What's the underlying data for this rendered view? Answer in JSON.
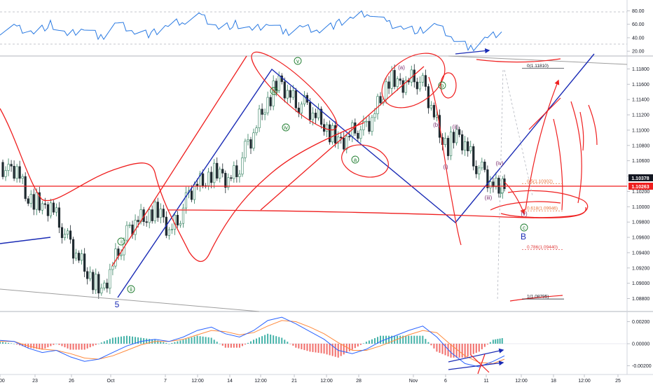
{
  "chart_data": [
    {
      "type": "line",
      "name": "rsi",
      "y_ticks": [
        "80.00",
        "60.00",
        "40.00",
        "20.00"
      ],
      "y_tick_values": [
        80,
        60,
        40,
        20
      ],
      "ylim": [
        17,
        92
      ],
      "x": [
        0,
        4,
        8,
        12,
        16,
        20,
        24,
        28,
        32,
        36,
        40,
        44,
        48,
        52,
        56,
        60,
        64,
        68,
        72,
        76,
        80,
        84,
        88,
        92,
        96,
        100,
        104,
        108,
        112,
        116,
        120
      ],
      "values": [
        50,
        55,
        48,
        60,
        42,
        55,
        40,
        62,
        50,
        45,
        58,
        66,
        72,
        55,
        60,
        50,
        62,
        48,
        56,
        52,
        60,
        70,
        78,
        62,
        55,
        50,
        58,
        38,
        24,
        40,
        52
      ]
    },
    {
      "type": "candlestick",
      "name": "price",
      "y_ticks": [
        "1.11800",
        "1.11600",
        "1.11400",
        "1.11200",
        "1.11000",
        "1.10800",
        "1.10600",
        "1.10400",
        "1.10200",
        "1.10000",
        "1.09800",
        "1.09600",
        "1.09400",
        "1.09200",
        "1.09000",
        "1.08800"
      ],
      "y_tick_values": [
        1.118,
        1.116,
        1.114,
        1.112,
        1.11,
        1.108,
        1.106,
        1.104,
        1.102,
        1.1,
        1.098,
        1.096,
        1.094,
        1.092,
        1.09,
        1.088
      ],
      "ylim": [
        1.0865,
        1.1195
      ],
      "current_price_labels": [
        {
          "text": "1.10378",
          "value": 1.10378,
          "color": "#131722"
        },
        {
          "text": "1.10263",
          "value": 1.10263,
          "color": "#ef1f1f"
        }
      ],
      "fib_levels": [
        {
          "text": "0(1.11810)",
          "value": 1.1181,
          "color": "#131722"
        },
        {
          "text": "0.5(1.10302)",
          "value": 1.10302,
          "color": "#e8733a"
        },
        {
          "text": "0.618(1.09946)",
          "value": 1.09946,
          "color": "#e8733a"
        },
        {
          "text": "0.786(1.09440)",
          "value": 1.0944,
          "color": "#e03a3a"
        },
        {
          "text": "1(1.08795)",
          "value": 1.08795,
          "color": "#131722"
        }
      ],
      "wave_labels_green": [
        "v",
        "iii",
        "iv",
        "i",
        "ii",
        "a",
        "b",
        "c"
      ],
      "wave_labels_purple": [
        "(a)",
        "(b)",
        "(i)",
        "(ii)",
        "(iii)",
        "(iv)",
        "(v)"
      ],
      "wave_labels_blue": [
        "5",
        "B"
      ],
      "close_path": [
        [
          0,
          1.1058
        ],
        [
          6,
          1.1042
        ],
        [
          12,
          1.1048
        ],
        [
          18,
          1.1015
        ],
        [
          24,
          1.101
        ],
        [
          30,
          1.0995
        ],
        [
          36,
          1.1005
        ],
        [
          42,
          1.0982
        ],
        [
          48,
          1.0955
        ],
        [
          54,
          1.0935
        ],
        [
          60,
          1.092
        ],
        [
          66,
          1.0905
        ],
        [
          72,
          1.0885
        ],
        [
          78,
          1.0918
        ],
        [
          84,
          1.0945
        ],
        [
          90,
          1.0962
        ],
        [
          96,
          1.0978
        ],
        [
          102,
          1.0985
        ],
        [
          108,
          1.0995
        ],
        [
          114,
          1.0988
        ],
        [
          120,
          1.097
        ],
        [
          126,
          1.0985
        ],
        [
          132,
          1.1005
        ],
        [
          138,
          1.1025
        ],
        [
          144,
          1.1032
        ],
        [
          150,
          1.1045
        ],
        [
          156,
          1.104
        ],
        [
          162,
          1.1038
        ],
        [
          168,
          1.1048
        ],
        [
          174,
          1.1072
        ],
        [
          180,
          1.1092
        ],
        [
          186,
          1.1125
        ],
        [
          192,
          1.1145
        ],
        [
          198,
          1.1162
        ],
        [
          204,
          1.1152
        ],
        [
          210,
          1.1138
        ],
        [
          216,
          1.1132
        ],
        [
          222,
          1.1118
        ],
        [
          228,
          1.1112
        ],
        [
          234,
          1.1098
        ],
        [
          240,
          1.1082
        ],
        [
          246,
          1.1092
        ],
        [
          252,
          1.1105
        ],
        [
          258,
          1.1098
        ],
        [
          264,
          1.1112
        ],
        [
          270,
          1.114
        ],
        [
          276,
          1.1168
        ],
        [
          282,
          1.1158
        ],
        [
          288,
          1.1165
        ],
        [
          294,
          1.1172
        ],
        [
          300,
          1.1158
        ],
        [
          306,
          1.1128
        ],
        [
          312,
          1.1095
        ],
        [
          318,
          1.108
        ],
        [
          324,
          1.1092
        ],
        [
          330,
          1.1085
        ],
        [
          336,
          1.1062
        ],
        [
          342,
          1.1045
        ],
        [
          348,
          1.1028
        ],
        [
          354,
          1.1022
        ],
        [
          358,
          1.1037
        ]
      ]
    },
    {
      "type": "line",
      "name": "macd",
      "y_ticks": [
        "0.00200",
        "0.00000",
        "-0.00200"
      ],
      "y_tick_values": [
        0.002,
        0.0,
        -0.002
      ],
      "ylim": [
        -0.0026,
        0.0026
      ],
      "x": [
        0,
        10,
        20,
        30,
        40,
        50,
        60,
        70,
        80,
        90,
        100,
        110,
        120,
        130,
        140,
        150,
        160,
        170,
        180,
        190,
        200,
        210,
        220,
        230,
        240,
        250,
        260,
        270,
        280,
        290,
        300,
        310,
        320,
        330,
        340,
        350,
        358
      ],
      "series": [
        {
          "values": [
            0.0003,
            0.0002,
            -0.0004,
            -0.0008,
            -0.0006,
            -0.0012,
            -0.0016,
            -0.0014,
            -0.0008,
            -0.0002,
            0.0002,
            0.0004,
            0.0002,
            0.0006,
            0.0012,
            0.0015,
            0.0009,
            0.0006,
            0.0012,
            0.0021,
            0.0024,
            0.0018,
            0.0011,
            0.0004,
            -0.0006,
            -0.0009,
            -0.0005,
            0.0002,
            0.0007,
            0.0012,
            0.0016,
            0.0006,
            -0.0008,
            -0.0018,
            -0.0021,
            -0.0016,
            -0.0011
          ]
        },
        {
          "values": [
            0.0002,
            0.0002,
            -0.0002,
            -0.0005,
            -0.0006,
            -0.0009,
            -0.0013,
            -0.0014,
            -0.0011,
            -0.0006,
            -0.0001,
            0.0002,
            0.0002,
            0.0004,
            0.0008,
            0.0012,
            0.0011,
            0.0008,
            0.001,
            0.0016,
            0.0021,
            0.002,
            0.0015,
            0.0009,
            0.0001,
            -0.0006,
            -0.0006,
            -0.0002,
            0.0003,
            0.0008,
            0.0012,
            0.001,
            -0.0001,
            -0.0011,
            -0.0017,
            -0.0018,
            -0.0014
          ]
        }
      ]
    }
  ],
  "x_axis": {
    "ticks": [
      "2:00",
      "23",
      "26",
      "Oct",
      "7",
      "12:00",
      "14",
      "12:00",
      "21",
      "12:00",
      "28",
      "Nov",
      "6",
      "11",
      "12:00",
      "18",
      "12:00",
      "25"
    ],
    "tick_values": [
      0,
      50,
      102,
      158,
      236,
      282,
      328,
      372,
      420,
      466,
      512,
      590,
      636,
      694,
      744,
      790,
      834,
      882
    ]
  },
  "colors": {
    "price_up": "#26a69a",
    "price_down": "#ef5350",
    "candle_body_dark": "#1f2a30",
    "red_annotations": "#ef1f1f",
    "blue_annotations": "#1a2bb5",
    "rsi_line": "#2a7ae2",
    "macd_line": "#2962ff",
    "signal_line": "#ff8a3d",
    "hist_up": "#26a69a",
    "hist_down": "#ef5350"
  }
}
